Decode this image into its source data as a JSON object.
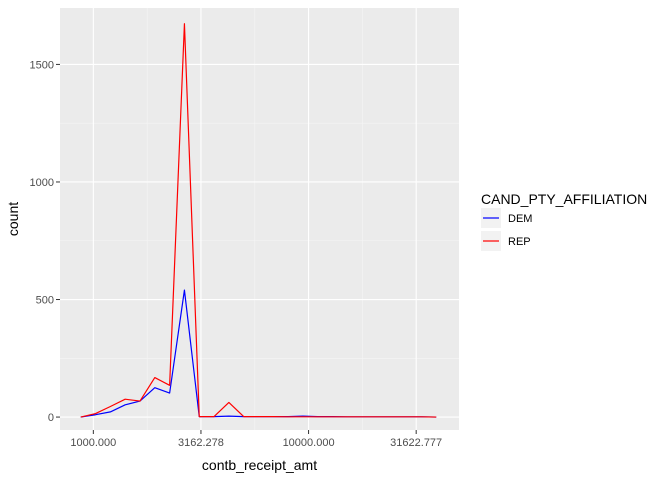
{
  "chart_data": {
    "type": "line",
    "xlabel": "contb_receipt_amt",
    "ylabel": "count",
    "x_scale": "log10",
    "xlim": [
      700,
      50000
    ],
    "ylim": [
      -55,
      1740
    ],
    "x_ticks": [
      {
        "value": 1000,
        "label": "1000.000"
      },
      {
        "value": 3162.278,
        "label": "3162.278"
      },
      {
        "value": 10000,
        "label": "10000.000"
      },
      {
        "value": 31622.777,
        "label": "31622.777"
      }
    ],
    "y_ticks": [
      {
        "value": 0,
        "label": "0"
      },
      {
        "value": 500,
        "label": "500"
      },
      {
        "value": 1000,
        "label": "1000"
      },
      {
        "value": 1500,
        "label": "1500"
      }
    ],
    "grid": true,
    "legend": {
      "title": "CAND_PTY_AFFILIATION",
      "position": "right"
    },
    "series": [
      {
        "name": "DEM",
        "color": "#0000ff",
        "points": [
          [
            874,
            0
          ],
          [
            1024,
            10
          ],
          [
            1200,
            22
          ],
          [
            1406,
            52
          ],
          [
            1647,
            68
          ],
          [
            1930,
            125
          ],
          [
            2262,
            102
          ],
          [
            2650,
            540
          ],
          [
            3105,
            2
          ],
          [
            3638,
            2
          ],
          [
            4263,
            4
          ],
          [
            4995,
            2
          ],
          [
            5852,
            2
          ],
          [
            6857,
            2
          ],
          [
            8035,
            2
          ],
          [
            9414,
            4
          ],
          [
            11030,
            2
          ],
          [
            12924,
            2
          ],
          [
            15143,
            1
          ],
          [
            17743,
            1
          ],
          [
            20790,
            1
          ],
          [
            24360,
            1
          ],
          [
            28543,
            1
          ],
          [
            33444,
            1
          ],
          [
            39188,
            0
          ]
        ]
      },
      {
        "name": "REP",
        "color": "#ff0000",
        "points": [
          [
            874,
            0
          ],
          [
            1024,
            15
          ],
          [
            1200,
            45
          ],
          [
            1406,
            76
          ],
          [
            1647,
            68
          ],
          [
            1930,
            168
          ],
          [
            2262,
            135
          ],
          [
            2650,
            1673
          ],
          [
            3105,
            2
          ],
          [
            3638,
            2
          ],
          [
            4263,
            62
          ],
          [
            4995,
            2
          ],
          [
            5852,
            2
          ],
          [
            6857,
            2
          ],
          [
            8035,
            1
          ],
          [
            9414,
            1
          ],
          [
            11030,
            1
          ],
          [
            12924,
            1
          ],
          [
            15143,
            1
          ],
          [
            17743,
            1
          ],
          [
            20790,
            1
          ],
          [
            24360,
            1
          ],
          [
            28543,
            1
          ],
          [
            33444,
            1
          ],
          [
            39188,
            0
          ]
        ]
      }
    ]
  }
}
